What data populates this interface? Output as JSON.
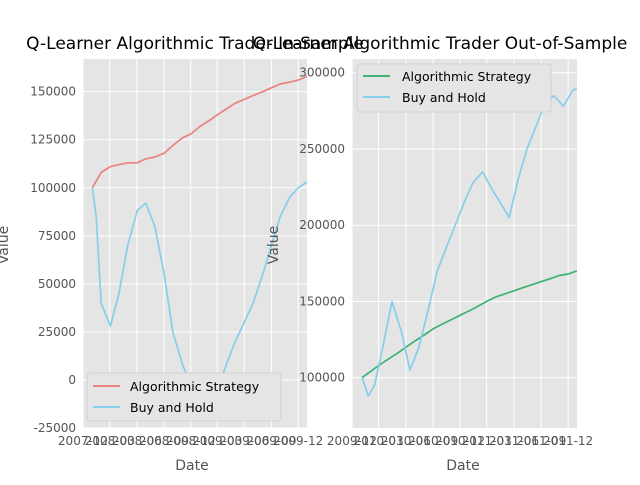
{
  "figure": {
    "background": "#ffffff",
    "axes_bg": "#e5e5e5",
    "grid": "#ffffff"
  },
  "chart_data": [
    {
      "type": "line",
      "title": "Q-Learner Algorithmic Trader In-Sample",
      "xlabel": "Date",
      "ylabel": "Value",
      "xlim": [
        "2007-12-01",
        "2009-12-31"
      ],
      "ylim": [
        -25000,
        167000
      ],
      "grid": true,
      "legend_position": "lower-right",
      "x_tick_labels": [
        "2007-12",
        "2008-03",
        "2008-06",
        "2008-09",
        "2008-12",
        "2009-03",
        "2009-06",
        "2009-09",
        "2009-12"
      ],
      "y_tick_labels": [
        "-25000",
        "0",
        "25000",
        "50000",
        "75000",
        "100000",
        "125000",
        "150000"
      ],
      "series": [
        {
          "name": "Algorithmic Strategy",
          "color": "#e8837f",
          "x": [
            "2008-01-02",
            "2008-02-01",
            "2008-03-03",
            "2008-04-01",
            "2008-05-01",
            "2008-06-02",
            "2008-07-01",
            "2008-08-01",
            "2008-09-02",
            "2008-10-01",
            "2008-11-03",
            "2008-12-01",
            "2009-01-02",
            "2009-02-02",
            "2009-03-02",
            "2009-04-01",
            "2009-05-01",
            "2009-06-01",
            "2009-07-01",
            "2009-08-03",
            "2009-09-01",
            "2009-10-01",
            "2009-11-02",
            "2009-12-01",
            "2009-12-31"
          ],
          "y": [
            100000,
            108000,
            111000,
            112000,
            113000,
            113000,
            115000,
            116000,
            118000,
            122000,
            126000,
            128000,
            132000,
            135000,
            138000,
            141000,
            144000,
            146000,
            148000,
            150000,
            152000,
            154000,
            155000,
            156000,
            158000
          ]
        },
        {
          "name": "Buy and Hold",
          "color": "#87ceeb",
          "x": [
            "2008-01-02",
            "2008-01-15",
            "2008-02-01",
            "2008-03-03",
            "2008-04-01",
            "2008-05-01",
            "2008-06-02",
            "2008-07-01",
            "2008-08-01",
            "2008-09-02",
            "2008-10-01",
            "2008-11-03",
            "2008-12-01",
            "2009-01-02",
            "2009-02-02",
            "2009-03-02",
            "2009-04-01",
            "2009-05-01",
            "2009-06-01",
            "2009-07-01",
            "2009-08-03",
            "2009-09-01",
            "2009-10-01",
            "2009-11-02",
            "2009-12-01",
            "2009-12-31"
          ],
          "y": [
            100000,
            85000,
            40000,
            28000,
            45000,
            70000,
            88000,
            92000,
            80000,
            55000,
            25000,
            8000,
            -2000,
            -8000,
            -12000,
            -5000,
            8000,
            20000,
            30000,
            40000,
            55000,
            70000,
            85000,
            95000,
            100000,
            103000
          ]
        }
      ]
    },
    {
      "type": "line",
      "title": "Q-Learner Algorithmic Trader Out-of-Sample",
      "xlabel": "Date",
      "ylabel": "Value",
      "xlim": [
        "2009-12-01",
        "2011-12-31"
      ],
      "ylim": [
        67000,
        309000
      ],
      "grid": true,
      "legend_position": "upper-left",
      "x_tick_labels": [
        "2009-12",
        "2010-03",
        "2010-06",
        "2010-09",
        "2010-12",
        "2011-03",
        "2011-06",
        "2011-09",
        "2011-12"
      ],
      "y_tick_labels": [
        "100000",
        "150000",
        "200000",
        "250000",
        "300000"
      ],
      "series": [
        {
          "name": "Algorithmic Strategy",
          "color": "#3cb371",
          "x": [
            "2010-01-04",
            "2010-02-01",
            "2010-03-01",
            "2010-04-01",
            "2010-05-03",
            "2010-06-01",
            "2010-07-01",
            "2010-08-02",
            "2010-09-01",
            "2010-10-01",
            "2010-11-01",
            "2010-12-01",
            "2011-01-03",
            "2011-02-01",
            "2011-03-01",
            "2011-04-01",
            "2011-05-02",
            "2011-06-01",
            "2011-07-01",
            "2011-08-01",
            "2011-09-01",
            "2011-10-03",
            "2011-11-01",
            "2011-12-01",
            "2011-12-30"
          ],
          "y": [
            100000,
            104000,
            108000,
            112000,
            116000,
            120000,
            124000,
            128000,
            132000,
            135000,
            138000,
            141000,
            144000,
            147000,
            150000,
            153000,
            155000,
            157000,
            159000,
            161000,
            163000,
            165000,
            167000,
            168000,
            170000
          ]
        },
        {
          "name": "Buy and Hold",
          "color": "#87ceeb",
          "x": [
            "2010-01-04",
            "2010-01-25",
            "2010-02-15",
            "2010-03-15",
            "2010-04-15",
            "2010-05-17",
            "2010-06-15",
            "2010-07-15",
            "2010-08-16",
            "2010-09-15",
            "2010-10-15",
            "2010-11-15",
            "2010-12-15",
            "2011-01-14",
            "2011-02-15",
            "2011-03-15",
            "2011-04-15",
            "2011-05-16",
            "2011-06-15",
            "2011-07-15",
            "2011-08-15",
            "2011-09-15",
            "2011-10-14",
            "2011-11-15",
            "2011-12-15",
            "2011-12-30"
          ],
          "y": [
            100000,
            88000,
            95000,
            120000,
            150000,
            130000,
            105000,
            120000,
            145000,
            170000,
            185000,
            200000,
            215000,
            228000,
            235000,
            225000,
            215000,
            205000,
            230000,
            250000,
            265000,
            280000,
            285000,
            278000,
            288000,
            290000
          ]
        }
      ]
    }
  ]
}
